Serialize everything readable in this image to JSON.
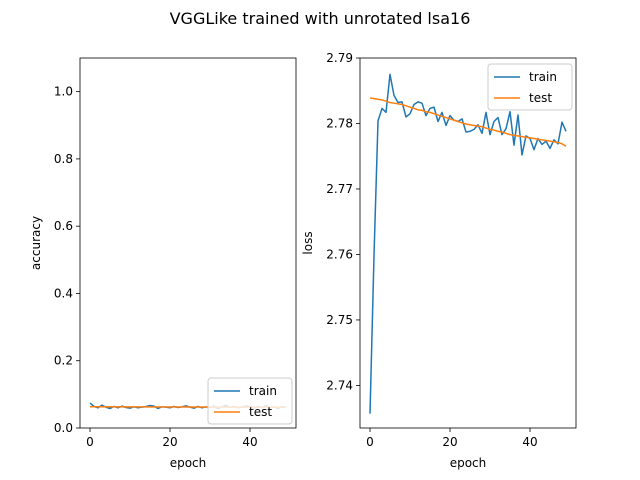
{
  "figure": {
    "suptitle": "VGGLike trained with unrotated lsa16"
  },
  "chart_data": [
    {
      "type": "line",
      "ylabel": "accuracy",
      "xlabel": "epoch",
      "xlim": [
        -2.5,
        51.5
      ],
      "ylim": [
        0.0,
        1.1
      ],
      "xticks": [
        0,
        20,
        40
      ],
      "yticks": [
        0.0,
        0.2,
        0.4,
        0.6,
        0.8,
        1.0
      ],
      "xtick_labels": [
        "0",
        "20",
        "40"
      ],
      "ytick_labels": [
        "0.0",
        "0.2",
        "0.4",
        "0.6",
        "0.8",
        "1.0"
      ],
      "legend_position": "lower-right",
      "series": [
        {
          "name": "train",
          "color": "#1f77b4",
          "x": [
            0,
            1,
            2,
            3,
            4,
            5,
            6,
            7,
            8,
            9,
            10,
            11,
            12,
            13,
            14,
            15,
            16,
            17,
            18,
            19,
            20,
            21,
            22,
            23,
            24,
            25,
            26,
            27,
            28,
            29,
            30,
            31,
            32,
            33,
            34,
            35,
            36,
            37,
            38,
            39,
            40,
            41,
            42,
            43,
            44,
            45,
            46,
            47,
            48,
            49
          ],
          "values": [
            0.074,
            0.064,
            0.06,
            0.068,
            0.062,
            0.058,
            0.064,
            0.06,
            0.065,
            0.061,
            0.059,
            0.063,
            0.06,
            0.062,
            0.064,
            0.067,
            0.065,
            0.058,
            0.063,
            0.062,
            0.06,
            0.064,
            0.061,
            0.063,
            0.066,
            0.062,
            0.059,
            0.064,
            0.06,
            0.063,
            0.061,
            0.065,
            0.058,
            0.063,
            0.067,
            0.061,
            0.064,
            0.06,
            0.062,
            0.065,
            0.063,
            0.059,
            0.064,
            0.061,
            0.066,
            0.06,
            0.063,
            0.058,
            0.064,
            0.061
          ]
        },
        {
          "name": "test",
          "color": "#ff7f0e",
          "x": [
            0,
            49
          ],
          "values": [
            0.063,
            0.062
          ]
        }
      ]
    },
    {
      "type": "line",
      "ylabel": "loss",
      "xlabel": "epoch",
      "xlim": [
        -2.5,
        51.5
      ],
      "ylim": [
        2.7335,
        2.79
      ],
      "xticks": [
        0,
        20,
        40
      ],
      "yticks": [
        2.74,
        2.75,
        2.76,
        2.77,
        2.78,
        2.79
      ],
      "xtick_labels": [
        "0",
        "20",
        "40"
      ],
      "ytick_labels": [
        "2.74",
        "2.75",
        "2.76",
        "2.77",
        "2.78",
        "2.79"
      ],
      "legend_position": "upper-right",
      "series": [
        {
          "name": "train",
          "color": "#1f77b4",
          "x": [
            0,
            1,
            2,
            3,
            4,
            5,
            6,
            7,
            8,
            9,
            10,
            11,
            12,
            13,
            14,
            15,
            16,
            17,
            18,
            19,
            20,
            21,
            22,
            23,
            24,
            25,
            26,
            27,
            28,
            29,
            30,
            31,
            32,
            33,
            34,
            35,
            36,
            37,
            38,
            39,
            40,
            41,
            42,
            43,
            44,
            45,
            46,
            47,
            48,
            49
          ],
          "values": [
            2.7357,
            2.7598,
            2.7804,
            2.7823,
            2.7817,
            2.7875,
            2.7843,
            2.7832,
            2.7833,
            2.781,
            2.7815,
            2.7829,
            2.7833,
            2.7831,
            2.7812,
            2.7823,
            2.7825,
            2.7803,
            2.7817,
            2.7797,
            2.7812,
            2.7805,
            2.7803,
            2.7807,
            2.7787,
            2.7788,
            2.7791,
            2.7798,
            2.7785,
            2.7817,
            2.7783,
            2.7803,
            2.7809,
            2.7783,
            2.7792,
            2.7818,
            2.7767,
            2.7813,
            2.7752,
            2.7781,
            2.7777,
            2.776,
            2.7777,
            2.7768,
            2.7773,
            2.7762,
            2.7775,
            2.7769,
            2.7802,
            2.7788
          ]
        },
        {
          "name": "test",
          "color": "#ff7f0e",
          "x": [
            0,
            1,
            2,
            3,
            4,
            5,
            6,
            7,
            8,
            9,
            10,
            11,
            12,
            13,
            14,
            15,
            16,
            17,
            18,
            19,
            20,
            21,
            22,
            23,
            24,
            25,
            26,
            27,
            28,
            29,
            30,
            31,
            32,
            33,
            34,
            35,
            36,
            37,
            38,
            39,
            40,
            41,
            42,
            43,
            44,
            45,
            46,
            47,
            48,
            49
          ],
          "values": [
            2.7839,
            2.7838,
            2.7837,
            2.7836,
            2.7834,
            2.7832,
            2.7831,
            2.783,
            2.7829,
            2.7827,
            2.7825,
            2.7823,
            2.7821,
            2.782,
            2.7818,
            2.7817,
            2.7815,
            2.7813,
            2.7811,
            2.7809,
            2.7807,
            2.7805,
            2.7803,
            2.7801,
            2.7799,
            2.7798,
            2.7797,
            2.7796,
            2.7795,
            2.7793,
            2.7791,
            2.779,
            2.7788,
            2.7787,
            2.7785,
            2.7783,
            2.7782,
            2.7781,
            2.778,
            2.7779,
            2.7778,
            2.7777,
            2.7776,
            2.7775,
            2.7774,
            2.7773,
            2.7772,
            2.7771,
            2.7769,
            2.7765
          ]
        }
      ]
    }
  ]
}
